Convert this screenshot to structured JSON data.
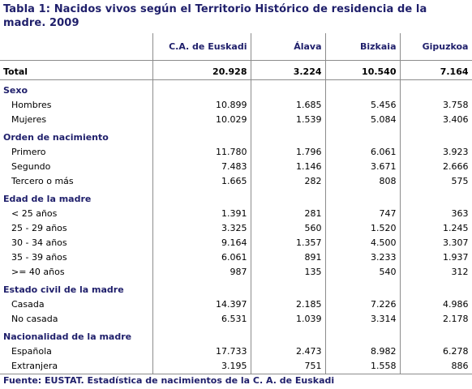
{
  "title": "Tabla 1: Nacidos vivos según el Territorio Histórico de residencia de la madre. 2009",
  "columns": [
    "C.A. de Euskadi",
    "Álava",
    "Bizkaia",
    "Gipuzkoa"
  ],
  "total": {
    "label": "Total",
    "values": [
      "20.928",
      "3.224",
      "10.540",
      "7.164"
    ]
  },
  "sections": [
    {
      "title": "Sexo",
      "rows": [
        {
          "label": "Hombres",
          "values": [
            "10.899",
            "1.685",
            "5.456",
            "3.758"
          ]
        },
        {
          "label": "Mujeres",
          "values": [
            "10.029",
            "1.539",
            "5.084",
            "3.406"
          ]
        }
      ]
    },
    {
      "title": "Orden de nacimiento",
      "rows": [
        {
          "label": "Primero",
          "values": [
            "11.780",
            "1.796",
            "6.061",
            "3.923"
          ]
        },
        {
          "label": "Segundo",
          "values": [
            "7.483",
            "1.146",
            "3.671",
            "2.666"
          ]
        },
        {
          "label": "Tercero o más",
          "values": [
            "1.665",
            "282",
            "808",
            "575"
          ]
        }
      ]
    },
    {
      "title": "Edad de la madre",
      "rows": [
        {
          "label": "< 25 años",
          "values": [
            "1.391",
            "281",
            "747",
            "363"
          ]
        },
        {
          "label": "25 - 29 años",
          "values": [
            "3.325",
            "560",
            "1.520",
            "1.245"
          ]
        },
        {
          "label": "30 - 34 años",
          "values": [
            "9.164",
            "1.357",
            "4.500",
            "3.307"
          ]
        },
        {
          "label": "35 - 39 años",
          "values": [
            "6.061",
            "891",
            "3.233",
            "1.937"
          ]
        },
        {
          "label": ">= 40 años",
          "values": [
            "987",
            "135",
            "540",
            "312"
          ]
        }
      ]
    },
    {
      "title": "Estado civil de la madre",
      "rows": [
        {
          "label": "Casada",
          "values": [
            "14.397",
            "2.185",
            "7.226",
            "4.986"
          ]
        },
        {
          "label": "No casada",
          "values": [
            "6.531",
            "1.039",
            "3.314",
            "2.178"
          ]
        }
      ]
    },
    {
      "title": "Nacionalidad de la madre",
      "rows": [
        {
          "label": "Española",
          "values": [
            "17.733",
            "2.473",
            "8.982",
            "6.278"
          ]
        },
        {
          "label": "Extranjera",
          "values": [
            "3.195",
            "751",
            "1.558",
            "886"
          ]
        }
      ]
    }
  ],
  "source": "Fuente: EUSTAT. Estadística de nacimientos de la C. A. de Euskadi"
}
